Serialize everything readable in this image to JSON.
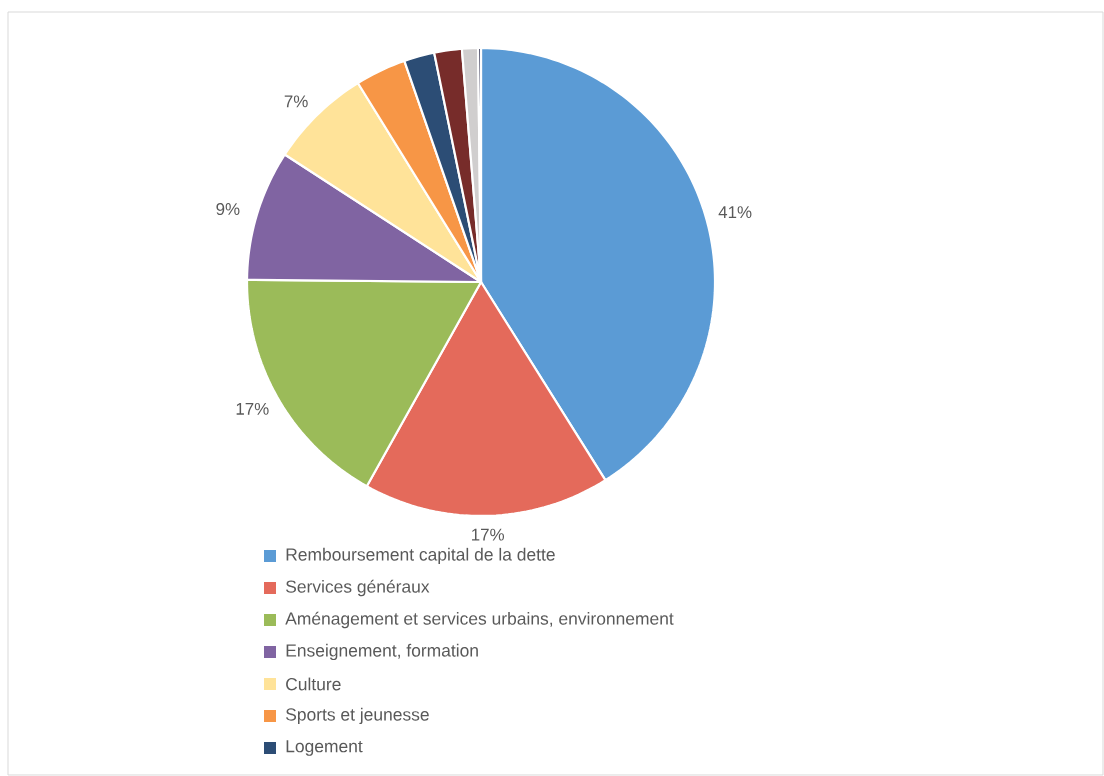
{
  "chart_data": {
    "type": "pie",
    "categories": [
      "Remboursement capital de la dette",
      "Services généraux",
      "Aménagement et services urbains, environnement",
      "Enseignement, formation",
      "Culture",
      "Sports et jeunesse",
      "Logement",
      null,
      null,
      null,
      null
    ],
    "values": [
      41,
      17,
      17,
      9,
      7,
      3.5,
      2.1,
      1.9,
      1.1,
      null,
      0.2
    ],
    "value_labels": [
      "41%",
      "17%",
      "17%",
      "9%",
      "7%",
      null,
      null,
      null,
      null,
      null,
      null
    ],
    "colors": [
      "#5b9bd5",
      "#e46a5b",
      "#9bbb59",
      "#8064a2",
      "#ffe399",
      "#f79646",
      "#2c4d75",
      "#772c2a",
      "#d0cece",
      "#eeeeee",
      "#252545"
    ],
    "legend": "bottom"
  }
}
